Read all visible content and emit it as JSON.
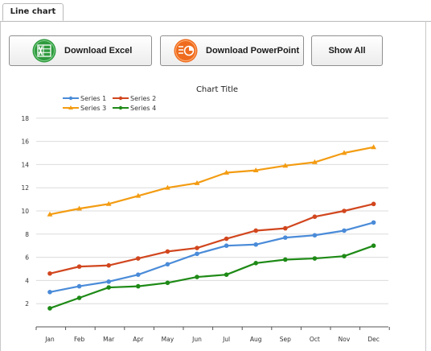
{
  "tabs": [
    {
      "label": "Line chart"
    }
  ],
  "toolbar": {
    "download_excel_label": "Download Excel",
    "download_powerpoint_label": "Download PowerPoint",
    "show_all_label": "Show All"
  },
  "icons": {
    "excel": "excel-icon",
    "powerpoint": "powerpoint-icon"
  },
  "colors": {
    "excel": "#2e9a3e",
    "powerpoint": "#ef6b1d"
  },
  "chart_data": {
    "type": "line",
    "title": "Chart Title",
    "categories": [
      "Jan",
      "Feb",
      "Mar",
      "Apr",
      "May",
      "Jun",
      "Jul",
      "Aug",
      "Sep",
      "Oct",
      "Nov",
      "Dec"
    ],
    "yticks": [
      "2",
      "4",
      "6",
      "8",
      "10",
      "12",
      "14",
      "16",
      "18"
    ],
    "ylim": [
      0,
      18
    ],
    "grid": true,
    "legend_position": "top-left",
    "series": [
      {
        "name": "Series 1",
        "color": "#4a8bd8",
        "marker": "circle",
        "values": [
          3.0,
          3.5,
          3.9,
          4.5,
          5.4,
          6.3,
          7.0,
          7.1,
          7.7,
          7.9,
          8.3,
          9.0
        ]
      },
      {
        "name": "Series 2",
        "color": "#d1461e",
        "marker": "circle",
        "values": [
          4.6,
          5.2,
          5.3,
          5.9,
          6.5,
          6.8,
          7.6,
          8.3,
          8.5,
          9.5,
          10.0,
          10.6
        ]
      },
      {
        "name": "Series 3",
        "color": "#f39c12",
        "marker": "triangle",
        "values": [
          9.7,
          10.2,
          10.6,
          11.3,
          12.0,
          12.4,
          13.3,
          13.5,
          13.9,
          14.2,
          15.0,
          15.5
        ]
      },
      {
        "name": "Series 4",
        "color": "#1e8a16",
        "marker": "circle",
        "values": [
          1.6,
          2.5,
          3.4,
          3.5,
          3.8,
          4.3,
          4.5,
          5.5,
          5.8,
          5.9,
          6.1,
          7.0
        ]
      }
    ]
  }
}
